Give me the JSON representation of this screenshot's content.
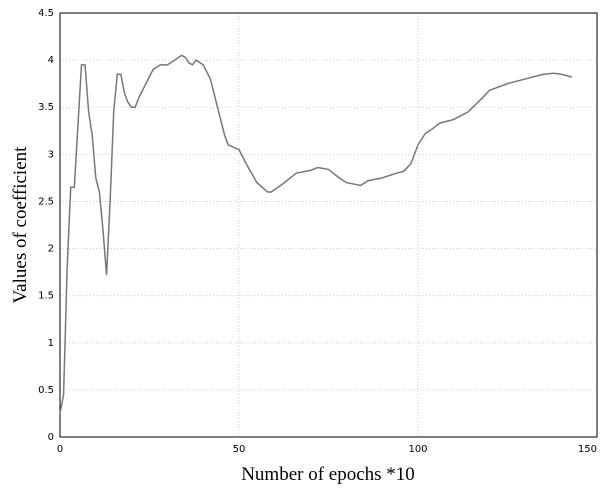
{
  "chart_data": {
    "type": "line",
    "xlabel": "Number of epochs *10",
    "ylabel": "Values of coefficient",
    "x": [
      0,
      1,
      2,
      3,
      4,
      5,
      6,
      7,
      8,
      9,
      10,
      11,
      12,
      13,
      14,
      15,
      16,
      17,
      18,
      19,
      20,
      21,
      22,
      24,
      26,
      28,
      30,
      32,
      34,
      35,
      36,
      37,
      38,
      40,
      42,
      44,
      46,
      47,
      50,
      52,
      55,
      58,
      59,
      62,
      66,
      70,
      72,
      75,
      78,
      80,
      84,
      86,
      90,
      94,
      96,
      98,
      100,
      102,
      104,
      106,
      110,
      114,
      118,
      120,
      125,
      130,
      135,
      138,
      140,
      143
    ],
    "series": [
      {
        "name": "coefficient",
        "color": "#777777",
        "values": [
          0.25,
          0.45,
          1.8,
          2.65,
          2.65,
          3.3,
          3.95,
          3.95,
          3.45,
          3.2,
          2.75,
          2.6,
          2.2,
          1.72,
          2.5,
          3.45,
          3.85,
          3.85,
          3.65,
          3.55,
          3.5,
          3.5,
          3.6,
          3.75,
          3.9,
          3.95,
          3.95,
          4.0,
          4.05,
          4.03,
          3.97,
          3.95,
          4.0,
          3.95,
          3.8,
          3.5,
          3.2,
          3.1,
          3.05,
          2.9,
          2.7,
          2.6,
          2.6,
          2.68,
          2.8,
          2.83,
          2.86,
          2.84,
          2.75,
          2.7,
          2.67,
          2.72,
          2.75,
          2.8,
          2.82,
          2.9,
          3.1,
          3.22,
          3.27,
          3.33,
          3.37,
          3.45,
          3.6,
          3.68,
          3.75,
          3.8,
          3.85,
          3.86,
          3.85,
          3.82
        ]
      }
    ],
    "xlim": [
      0,
      150
    ],
    "xticks": [
      0,
      50,
      100,
      150
    ],
    "ylim": [
      0,
      4.5
    ],
    "yticks": [
      0,
      0.5,
      1,
      1.5,
      2,
      2.5,
      3,
      3.5,
      4,
      4.5
    ],
    "grid": true
  }
}
